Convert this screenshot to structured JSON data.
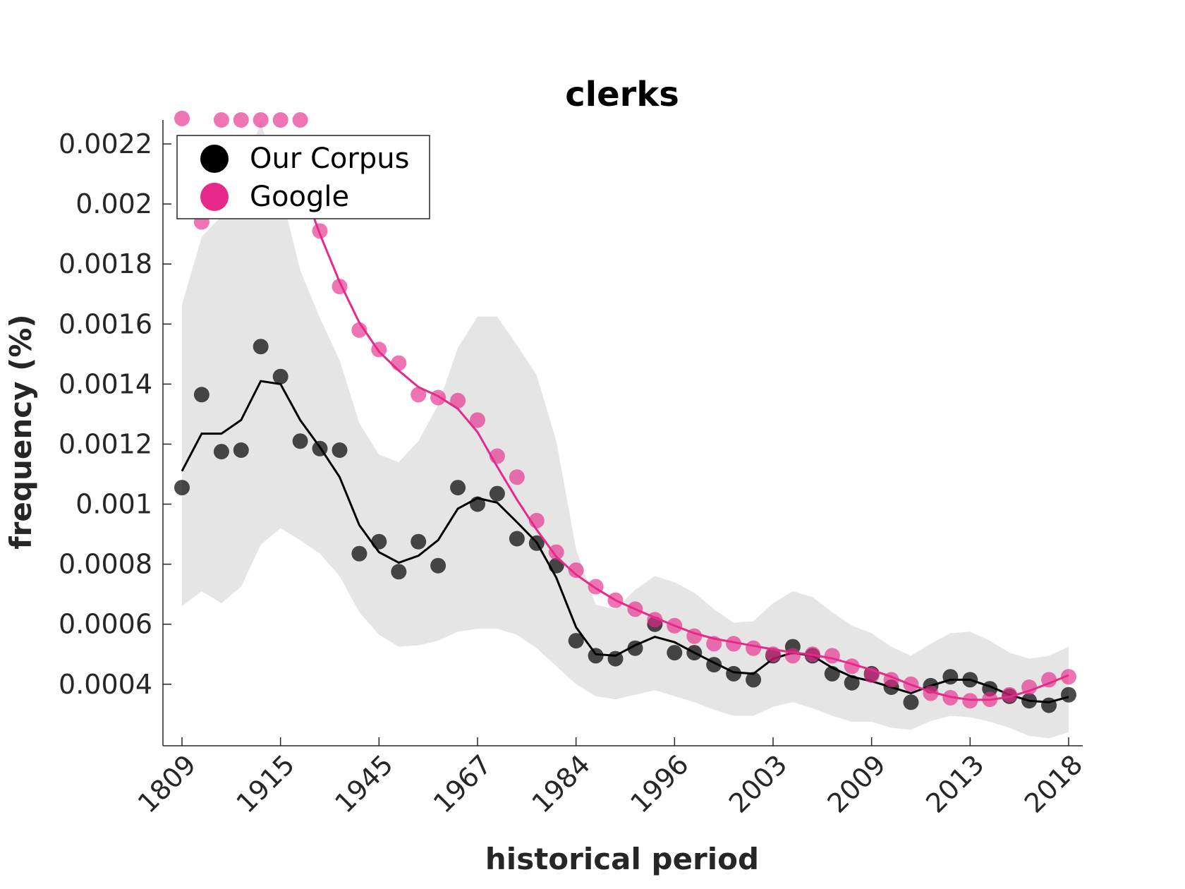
{
  "chart_data": {
    "type": "scatter",
    "title": "clerks",
    "xlabel": "historical period",
    "ylabel": "frequency (%)",
    "x_tick_labels": [
      "1809",
      "1915",
      "1945",
      "1967",
      "1984",
      "1996",
      "2003",
      "2009",
      "2013",
      "2018"
    ],
    "y_ticks": [
      0.0004,
      0.0006,
      0.0008,
      0.001,
      0.0012,
      0.0014,
      0.0016,
      0.0018,
      0.002,
      0.0022
    ],
    "y_tick_labels": [
      "0.0004",
      "0.0006",
      "0.0008",
      "0.001",
      "0.0012",
      "0.0014",
      "0.0016",
      "0.0018",
      "0.002",
      "0.0022"
    ],
    "ylim": [
      0.000195,
      0.00228
    ],
    "grid": false,
    "legend_position": "top-left",
    "legend": [
      {
        "label": "Our Corpus",
        "color": "#000000"
      },
      {
        "label": "Google",
        "color": "#e7298a"
      }
    ],
    "series": [
      {
        "name": "Our Corpus",
        "color": "#000000",
        "points": [
          0.001055,
          0.001365,
          0.001175,
          0.00118,
          0.001525,
          0.001425,
          0.00121,
          0.001185,
          0.00118,
          0.000835,
          0.000875,
          0.000775,
          0.000875,
          0.000795,
          0.001055,
          0.001,
          0.001035,
          0.000885,
          0.00087,
          0.000795,
          0.000545,
          0.000495,
          0.000485,
          0.00052,
          0.0006,
          0.000505,
          0.000505,
          0.000465,
          0.000435,
          0.000415,
          0.000495,
          0.000525,
          0.000495,
          0.000435,
          0.000405,
          0.000435,
          0.00039,
          0.00034,
          0.000395,
          0.000425,
          0.000415,
          0.000385,
          0.00036,
          0.000345,
          0.00033,
          0.000365
        ],
        "trend": [
          0.00111,
          0.001235,
          0.001235,
          0.00128,
          0.00141,
          0.0014,
          0.00128,
          0.00119,
          0.00109,
          0.00093,
          0.00084,
          0.000805,
          0.000828,
          0.00088,
          0.000985,
          0.00102,
          0.001005,
          0.00094,
          0.000873,
          0.000755,
          0.00059,
          0.0005,
          0.000495,
          0.00053,
          0.000558,
          0.00054,
          0.000505,
          0.000472,
          0.00044,
          0.000435,
          0.000485,
          0.000505,
          0.000495,
          0.000455,
          0.000425,
          0.00041,
          0.00039,
          0.00037,
          0.000395,
          0.000415,
          0.000415,
          0.000393,
          0.000365,
          0.000345,
          0.00034,
          0.000358
        ],
        "band_upper": [
          0.001665,
          0.00189,
          0.00196,
          0.002075,
          0.002275,
          0.002045,
          0.00178,
          0.00162,
          0.00148,
          0.00127,
          0.001165,
          0.00114,
          0.00121,
          0.00133,
          0.00152,
          0.001625,
          0.001625,
          0.00153,
          0.00143,
          0.00121,
          0.00085,
          0.000665,
          0.00065,
          0.000715,
          0.00076,
          0.00074,
          0.000705,
          0.00065,
          0.000605,
          0.00061,
          0.00067,
          0.00071,
          0.00069,
          0.00064,
          0.000595,
          0.00057,
          0.000525,
          0.000495,
          0.000535,
          0.00057,
          0.000575,
          0.000545,
          0.000505,
          0.000485,
          0.000495,
          0.000525
        ],
        "band_lower": [
          0.00066,
          0.00071,
          0.00067,
          0.000725,
          0.000865,
          0.00092,
          0.00088,
          0.000835,
          0.00076,
          0.00064,
          0.000565,
          0.000525,
          0.00053,
          0.000545,
          0.000575,
          0.000585,
          0.000585,
          0.000565,
          0.00052,
          0.00046,
          0.0004,
          0.00036,
          0.00035,
          0.000365,
          0.00038,
          0.00036,
          0.00034,
          0.000315,
          0.000295,
          0.000295,
          0.000325,
          0.00034,
          0.00032,
          0.000295,
          0.000275,
          0.000275,
          0.000255,
          0.000248,
          0.000278,
          0.000295,
          0.00029,
          0.000275,
          0.000255,
          0.000228,
          0.00022,
          0.00024
        ]
      },
      {
        "name": "Google",
        "color": "#e7298a",
        "points": [
          0.002285,
          0.00194,
          0.00228,
          0.00228,
          0.00228,
          0.00228,
          0.00228,
          0.00191,
          0.001725,
          0.00158,
          0.001515,
          0.00147,
          0.001365,
          0.001355,
          0.001345,
          0.00128,
          0.00116,
          0.00109,
          0.000945,
          0.00084,
          0.00078,
          0.000725,
          0.00068,
          0.00065,
          0.000615,
          0.000595,
          0.00056,
          0.000535,
          0.000535,
          0.00052,
          0.0005,
          0.000495,
          0.0005,
          0.000495,
          0.00046,
          0.00043,
          0.000415,
          0.0004,
          0.00037,
          0.000355,
          0.000345,
          0.00035,
          0.000365,
          0.00039,
          0.000415,
          0.000425
        ],
        "trend": [
          null,
          null,
          null,
          null,
          null,
          null,
          0.00208,
          0.0019,
          0.00174,
          0.001605,
          0.001508,
          0.001445,
          0.00139,
          0.00136,
          0.001318,
          0.00124,
          0.001125,
          0.001015,
          0.000915,
          0.000825,
          0.000765,
          0.00072,
          0.00068,
          0.00065,
          0.000622,
          0.000595,
          0.00057,
          0.000552,
          0.00054,
          0.000528,
          0.000516,
          0.000506,
          0.000498,
          0.000486,
          0.000468,
          0.000448,
          0.000425,
          0.000398,
          0.000375,
          0.000358,
          0.000348,
          0.000348,
          0.000358,
          0.000378,
          0.000403,
          0.00043
        ]
      }
    ]
  }
}
